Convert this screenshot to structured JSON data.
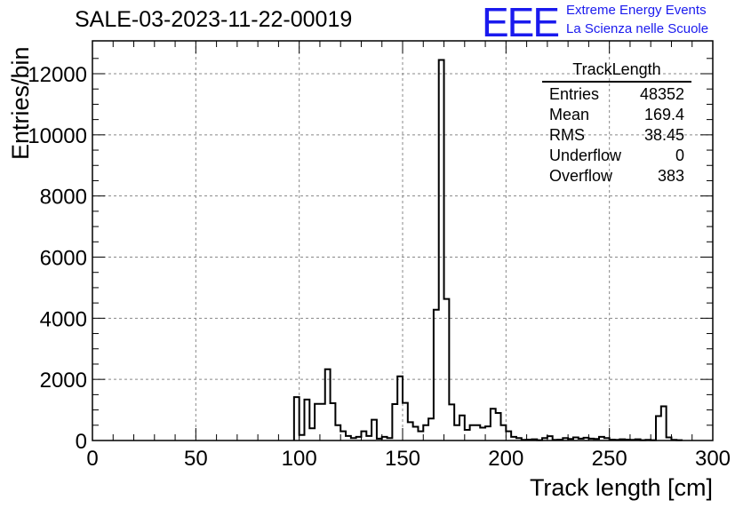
{
  "header": {
    "title": "SALE-03-2023-11-22-00019",
    "logo_text": "EEE",
    "logo_line1": "Extreme Energy Events",
    "logo_line2": "La Scienza nelle Scuole"
  },
  "stats": {
    "title": "TrackLength",
    "rows": [
      {
        "label": "Entries",
        "value": "48352"
      },
      {
        "label": "Mean",
        "value": "169.4"
      },
      {
        "label": "RMS",
        "value": "38.45"
      },
      {
        "label": "Underflow",
        "value": "0"
      },
      {
        "label": "Overflow",
        "value": "383"
      }
    ]
  },
  "colors": {
    "logo": "#1a1aee",
    "line": "#000000",
    "grid": "#888888"
  },
  "chart_data": {
    "type": "bar",
    "xlabel": "Track length [cm]",
    "ylabel": "Entries/bin",
    "xlim": [
      0,
      300
    ],
    "ylim": [
      0,
      12500
    ],
    "xticks": [
      "0",
      "50",
      "100",
      "150",
      "200",
      "250",
      "300"
    ],
    "yticks": [
      "0",
      "2000",
      "4000",
      "6000",
      "8000",
      "10000",
      "12000"
    ],
    "grid": true,
    "bin_width": 2.5,
    "bins": [
      [
        97.5,
        1420
      ],
      [
        100,
        180
      ],
      [
        102.5,
        1340
      ],
      [
        105,
        400
      ],
      [
        107.5,
        1200
      ],
      [
        110,
        1200
      ],
      [
        112.5,
        2330
      ],
      [
        115,
        1220
      ],
      [
        117.5,
        500
      ],
      [
        120,
        300
      ],
      [
        122.5,
        150
      ],
      [
        125,
        80
      ],
      [
        127.5,
        120
      ],
      [
        130,
        300
      ],
      [
        132.5,
        150
      ],
      [
        135,
        680
      ],
      [
        137.5,
        60
      ],
      [
        140,
        120
      ],
      [
        142.5,
        80
      ],
      [
        145,
        1190
      ],
      [
        147.5,
        2100
      ],
      [
        150,
        1230
      ],
      [
        152.5,
        600
      ],
      [
        155,
        450
      ],
      [
        157.5,
        300
      ],
      [
        160,
        500
      ],
      [
        162.5,
        720
      ],
      [
        165,
        4280
      ],
      [
        167.5,
        12450
      ],
      [
        170,
        4630
      ],
      [
        172.5,
        1180
      ],
      [
        175,
        500
      ],
      [
        177.5,
        820
      ],
      [
        180,
        350
      ],
      [
        182.5,
        500
      ],
      [
        185,
        500
      ],
      [
        187.5,
        420
      ],
      [
        190,
        460
      ],
      [
        192.5,
        1040
      ],
      [
        195,
        900
      ],
      [
        197.5,
        500
      ],
      [
        200,
        300
      ],
      [
        202.5,
        120
      ],
      [
        205,
        80
      ],
      [
        207.5,
        20
      ],
      [
        210,
        30
      ],
      [
        212.5,
        40
      ],
      [
        215,
        10
      ],
      [
        217.5,
        80
      ],
      [
        220,
        140
      ],
      [
        222.5,
        20
      ],
      [
        225,
        30
      ],
      [
        227.5,
        80
      ],
      [
        230,
        50
      ],
      [
        232.5,
        100
      ],
      [
        235,
        60
      ],
      [
        237.5,
        90
      ],
      [
        240,
        60
      ],
      [
        242.5,
        50
      ],
      [
        245,
        120
      ],
      [
        247.5,
        80
      ],
      [
        250,
        30
      ],
      [
        252.5,
        20
      ],
      [
        255,
        40
      ],
      [
        257.5,
        30
      ],
      [
        260,
        20
      ],
      [
        262.5,
        40
      ],
      [
        265,
        10
      ],
      [
        267.5,
        20
      ],
      [
        270,
        10
      ],
      [
        272.5,
        800
      ],
      [
        275,
        1120
      ],
      [
        277.5,
        100
      ],
      [
        280,
        20
      ],
      [
        282.5,
        10
      ]
    ]
  }
}
